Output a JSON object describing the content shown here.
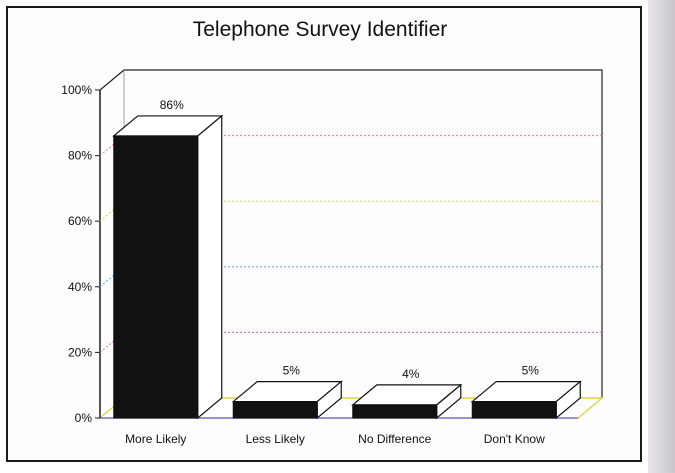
{
  "chart_data": {
    "type": "bar",
    "title": "Telephone Survey Identifier",
    "xlabel": "",
    "ylabel": "",
    "categories": [
      "More Likely",
      "Less Likely",
      "No Difference",
      "Don't Know"
    ],
    "values": [
      86,
      5,
      4,
      5
    ],
    "value_labels": [
      "86%",
      "5%",
      "4%",
      "5%"
    ],
    "ylim": [
      0,
      100
    ],
    "yticks": [
      0,
      20,
      40,
      60,
      80,
      100
    ],
    "ytick_labels": [
      "0%",
      "20%",
      "40%",
      "60%",
      "80%",
      "100%"
    ],
    "grid": true,
    "legend": "none",
    "style": "3d",
    "colors": {
      "bar_front": "#111111",
      "bar_side": "#ffffff",
      "grid": [
        "#c86ad8",
        "#6aa6e0",
        "#d6c85a",
        "#e07ab0",
        "#e6d25a"
      ],
      "floor": "#e0d24c"
    }
  }
}
